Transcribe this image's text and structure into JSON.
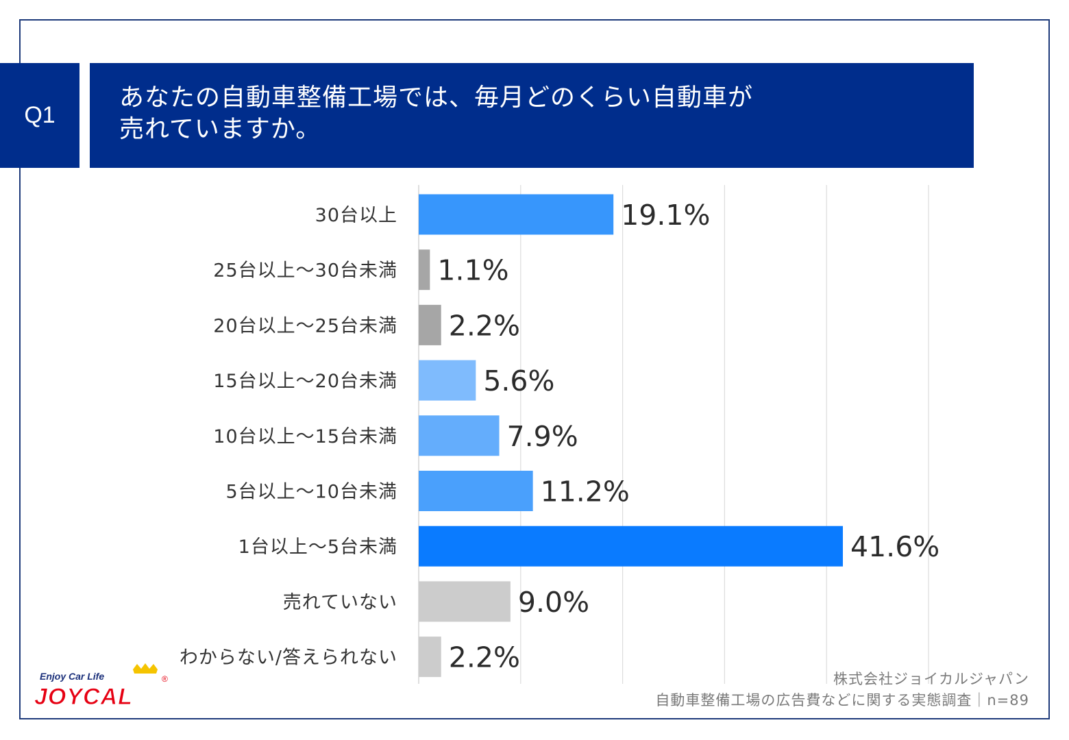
{
  "question": {
    "badge": "Q1",
    "line1": "あなたの自動車整備工場では、毎月どのくらい自動車が",
    "line2": "売れていますか。"
  },
  "chart_data": {
    "type": "bar",
    "orientation": "horizontal",
    "categories": [
      "30台以上",
      "25台以上～30台未満",
      "20台以上～25台未満",
      "15台以上～20台未満",
      "10台以上～15台未満",
      "5台以上～10台未満",
      "1台以上～5台未満",
      "売れていない",
      "わからない/答えられない"
    ],
    "values": [
      19.1,
      1.1,
      2.2,
      5.6,
      7.9,
      11.2,
      41.6,
      9.0,
      2.2
    ],
    "value_labels": [
      "19.1%",
      "1.1%",
      "2.2%",
      "5.6%",
      "7.9%",
      "11.2%",
      "41.6%",
      "9.0%",
      "2.2%"
    ],
    "colors": [
      "#3796fc",
      "#a6a6a6",
      "#a6a6a6",
      "#7fbbfd",
      "#64adfc",
      "#4aa0fc",
      "#0a7bff",
      "#cccccc",
      "#cccccc"
    ],
    "xlim": [
      0,
      50
    ],
    "grid": true
  },
  "footer": {
    "company": "株式会社ジョイカルジャパン",
    "survey": "自動車整備工場の広告費などに関する実態調査｜n=89"
  },
  "logo": {
    "tagline": "Enjoy Car Life",
    "wordmark": "JOYCAL",
    "registered": "®"
  }
}
